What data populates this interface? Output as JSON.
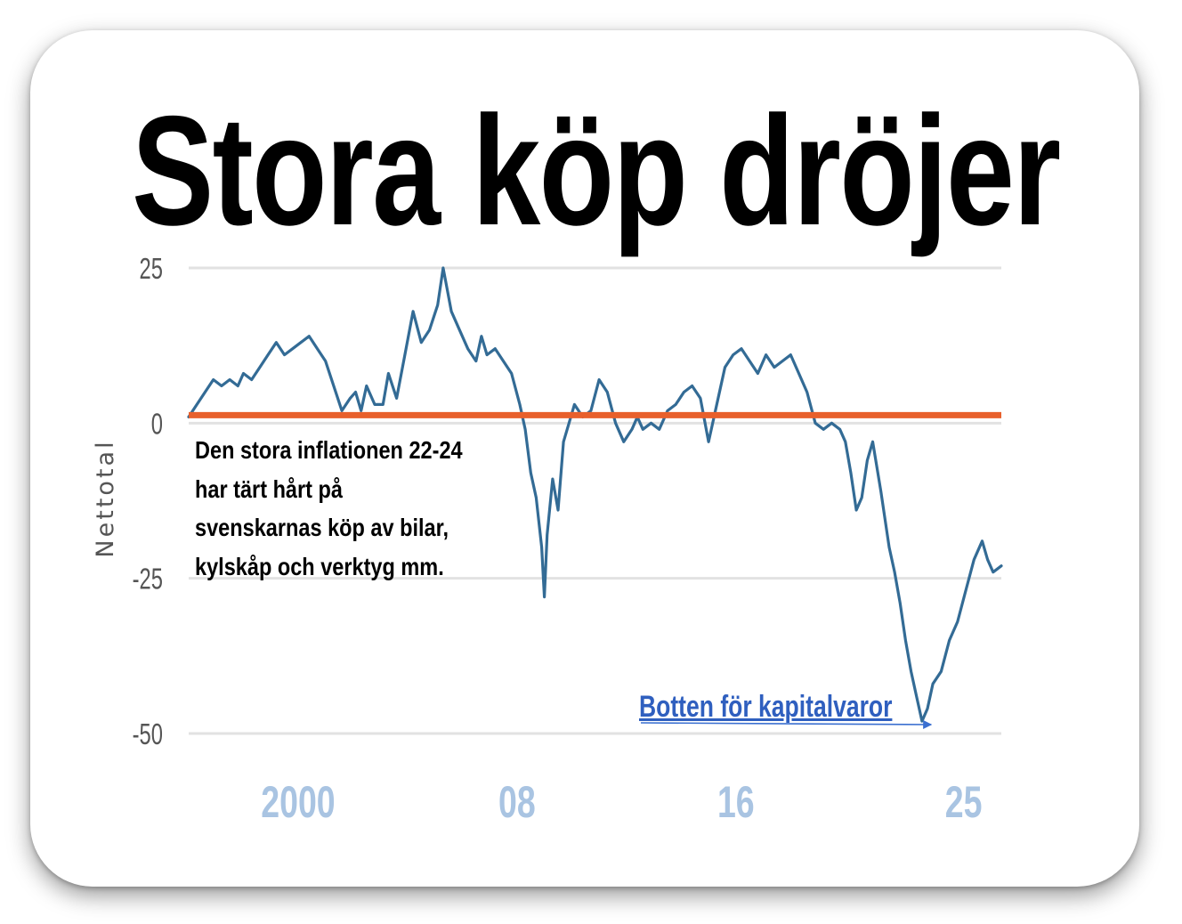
{
  "chart_data": {
    "type": "line",
    "title": "Stora köp dröjer",
    "ylabel": "Nettotal",
    "xlabel": "",
    "ylim": [
      -50,
      25
    ],
    "y_ticks": [
      25,
      0,
      -25,
      -50
    ],
    "y_tick_labels": [
      "25",
      "0",
      "-25",
      "-50"
    ],
    "x_range": [
      1996.0,
      2025.7
    ],
    "x_ticks": [
      2000,
      2008,
      2016,
      2025
    ],
    "x_tick_labels": [
      "2000",
      "08",
      "16",
      "25"
    ],
    "grid": "horizontal",
    "series": [
      {
        "color": "#336b95",
        "x": [
          1996.0,
          1996.3,
          1996.6,
          1996.9,
          1997.2,
          1997.5,
          1997.8,
          1998.0,
          1998.3,
          1998.6,
          1998.9,
          1999.2,
          1999.5,
          1999.8,
          2000.1,
          2000.4,
          2000.7,
          2001.0,
          2001.3,
          2001.6,
          2001.9,
          2002.1,
          2002.3,
          2002.5,
          2002.8,
          2003.1,
          2003.3,
          2003.6,
          2003.9,
          2004.2,
          2004.5,
          2004.8,
          2005.1,
          2005.3,
          2005.6,
          2005.9,
          2006.2,
          2006.5,
          2006.7,
          2006.9,
          2007.2,
          2007.5,
          2007.8,
          2008.1,
          2008.3,
          2008.5,
          2008.7,
          2008.9,
          2009.0,
          2009.1,
          2009.3,
          2009.5,
          2009.7,
          2009.9,
          2010.1,
          2010.4,
          2010.7,
          2011.0,
          2011.3,
          2011.6,
          2011.9,
          2012.2,
          2012.4,
          2012.6,
          2012.9,
          2013.2,
          2013.5,
          2013.8,
          2014.1,
          2014.4,
          2014.7,
          2015.0,
          2015.3,
          2015.6,
          2015.9,
          2016.2,
          2016.5,
          2016.8,
          2017.1,
          2017.4,
          2017.7,
          2018.0,
          2018.3,
          2018.6,
          2018.9,
          2019.2,
          2019.5,
          2019.8,
          2020.0,
          2020.2,
          2020.4,
          2020.6,
          2020.8,
          2021.0,
          2021.3,
          2021.6,
          2021.8,
          2022.0,
          2022.2,
          2022.4,
          2022.6,
          2022.8,
          2023.0,
          2023.2,
          2023.5,
          2023.8,
          2024.1,
          2024.4,
          2024.7,
          2025.0,
          2025.2,
          2025.4,
          2025.7
        ],
        "values": [
          1,
          3,
          5,
          7,
          6,
          7,
          6,
          8,
          7,
          9,
          11,
          13,
          11,
          12,
          13,
          14,
          12,
          10,
          6,
          2,
          4,
          5,
          2,
          6,
          3,
          3,
          8,
          4,
          11,
          18,
          13,
          15,
          19,
          25,
          18,
          15,
          12,
          10,
          14,
          11,
          12,
          10,
          8,
          3,
          -1,
          -8,
          -12,
          -20,
          -28,
          -18,
          -9,
          -14,
          -3,
          0,
          3,
          1,
          2,
          7,
          5,
          0,
          -3,
          -1,
          1,
          -1,
          0,
          -1,
          2,
          3,
          5,
          6,
          4,
          -3,
          3,
          9,
          11,
          12,
          10,
          8,
          11,
          9,
          10,
          11,
          8,
          5,
          0,
          -1,
          0,
          -1,
          -3,
          -8,
          -14,
          -12,
          -6,
          -3,
          -11,
          -20,
          -24,
          -29,
          -35,
          -40,
          -44,
          -48,
          -46,
          -42,
          -40,
          -35,
          -32,
          -27,
          -22,
          -19,
          -22,
          -24,
          -23
        ]
      }
    ],
    "reference_line": {
      "value": 0,
      "color": "#e8602c"
    },
    "annotations": [
      {
        "text": "Den stora inflationen 22-24 har tärt hårt på svenskarnas köp av bilar, kylskåp och verktyg mm."
      },
      {
        "text": "Botten för kapitalvaror",
        "target_x": 2023.2,
        "target_y": -48,
        "color": "#2f5fbf"
      }
    ]
  }
}
